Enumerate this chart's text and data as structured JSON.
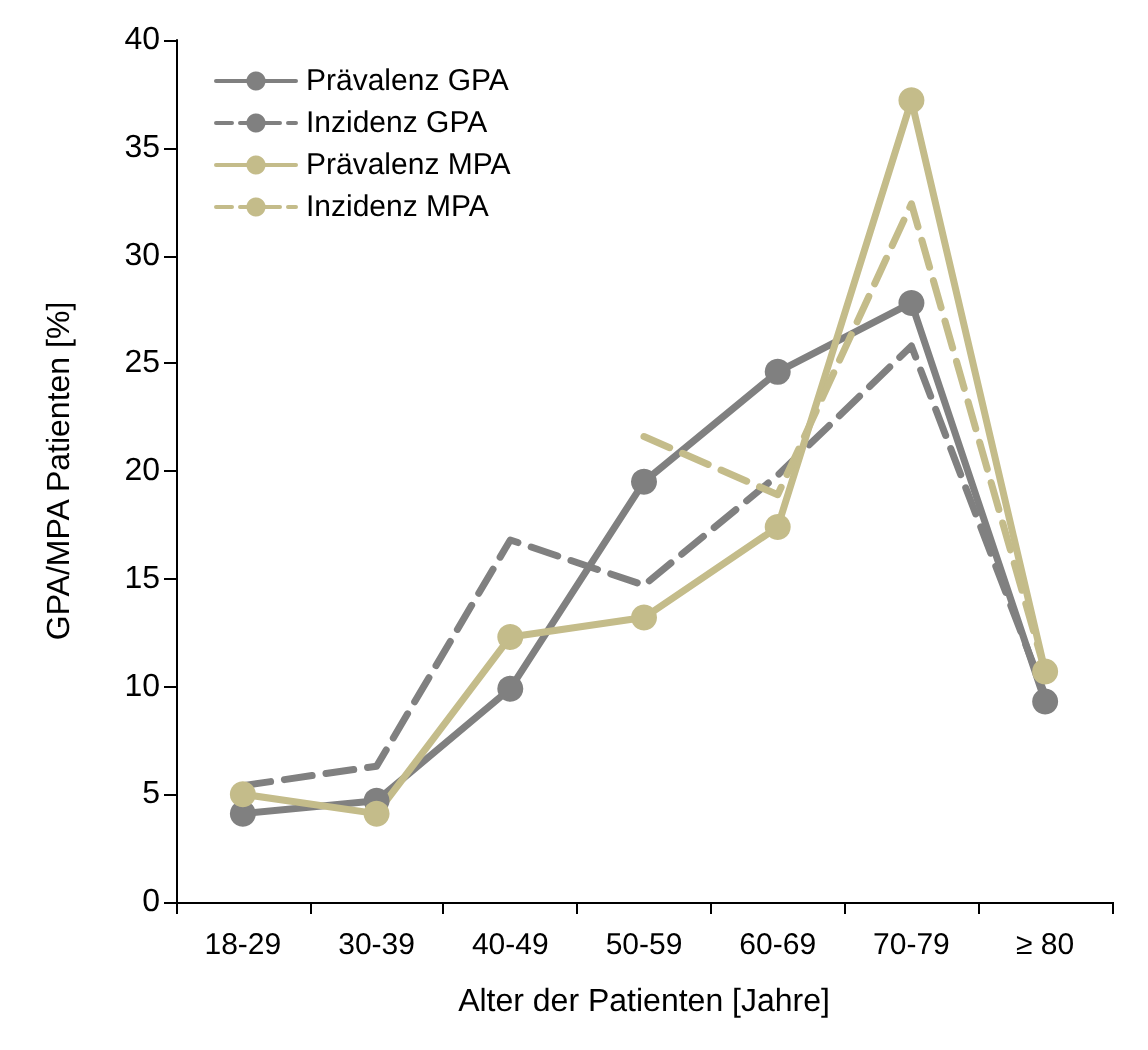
{
  "chart_data": {
    "type": "line",
    "xlabel": "Alter der Patienten [Jahre]",
    "ylabel": "GPA/MPA Patienten [%]",
    "categories": [
      "18-29",
      "30-39",
      "40-49",
      "50-59",
      "60-69",
      "70-79",
      "≥ 80"
    ],
    "series": [
      {
        "name": "Prävalenz GPA",
        "color": "#808080",
        "marker": "circle",
        "line_style": "solid",
        "values": [
          4.1,
          4.7,
          9.9,
          19.5,
          24.6,
          27.8,
          9.3
        ]
      },
      {
        "name": "Inzidenz GPA",
        "color": "#808080",
        "marker": "none",
        "line_style": "dashed",
        "values": [
          5.4,
          6.3,
          16.8,
          14.7,
          19.8,
          25.8,
          9.6
        ]
      },
      {
        "name": "Prävalenz MPA",
        "color": "#c4bc8a",
        "marker": "circle",
        "line_style": "solid",
        "values": [
          5.0,
          4.1,
          12.3,
          13.2,
          17.4,
          37.2,
          10.7
        ]
      },
      {
        "name": "Inzidenz MPA",
        "color": "#c4bc8a",
        "marker": "none",
        "line_style": "dashed",
        "values": [
          null,
          null,
          null,
          21.6,
          18.9,
          32.4,
          10.7
        ]
      }
    ],
    "ylim": [
      0,
      40
    ],
    "yticks": [
      0,
      5,
      10,
      15,
      20,
      25,
      30,
      35,
      40
    ],
    "grid": false,
    "legend": "top left"
  }
}
